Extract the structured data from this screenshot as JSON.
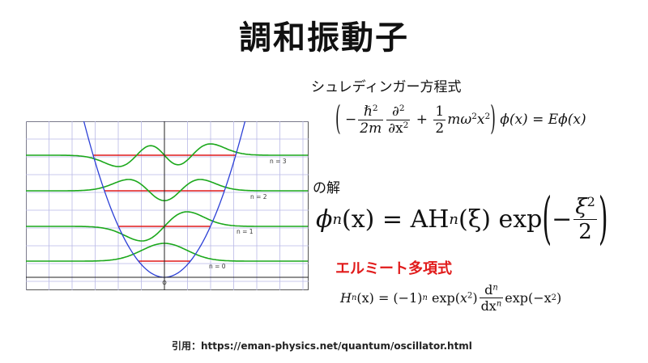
{
  "slide": {
    "title": "調和振動子",
    "schrodinger_label": "シュレディンガー方程式",
    "solution_label": "の解",
    "hermite_label": "エルミート多項式",
    "citation": "引用：https://eman-physics.net/quantum/oscillator.html"
  },
  "equations": {
    "hbar": "ℏ",
    "two_m": "2m",
    "partial": "∂",
    "dx2": "∂x",
    "one": "1",
    "two": "2",
    "m_omega_x": "mω",
    "phi_x": "ϕ(x) = Eϕ(x)",
    "phi_n": "ϕ",
    "phi_n_sub": "n",
    "phi_n_rest": "(x) = AH",
    "xi": "(ξ) exp",
    "xi_sym": "ξ",
    "H_n": "H",
    "H_n_rest": "(x) = (−1)",
    "exp": "exp",
    "d": "d",
    "dx": "dx",
    "exp_neg": "exp(−x"
  },
  "graph": {
    "levels": [
      {
        "n": 0,
        "label": "n = 0"
      },
      {
        "n": 1,
        "label": "n = 1"
      },
      {
        "n": 2,
        "label": "n = 2"
      },
      {
        "n": 3,
        "label": "n = 3"
      }
    ],
    "origin_label": "O",
    "colors": {
      "potential": "#2b3fd6",
      "wave": "#1ba81b",
      "energy": "#e11b1b",
      "grid": "#b9b9e6"
    }
  }
}
